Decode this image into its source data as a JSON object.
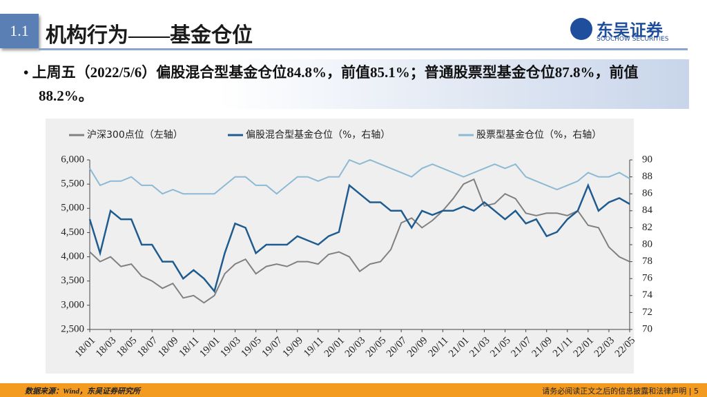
{
  "header": {
    "section": "1.1",
    "title": "机构行为——基金仓位",
    "logo": "东吴证券",
    "logo_en": "SOOCHOW SECURITIES"
  },
  "bullet": "• 上周五（2022/5/6）偏股混合型基金仓位84.8%，前值85.1%；普通股票型基金仓位87.8%，前值88.2%。",
  "footer": {
    "source": "数据来源：Wind，东吴证券研究所",
    "disclaimer": "请务必阅读正文之后的信息披露和法律声明 | 5"
  },
  "chart_data": {
    "type": "line",
    "categories": [
      "18/01",
      null,
      "18/03",
      null,
      "18/05",
      null,
      "18/07",
      null,
      "18/09",
      null,
      "18/11",
      null,
      "19/01",
      null,
      "19/03",
      null,
      "19/05",
      null,
      "19/07",
      null,
      "19/09",
      null,
      "19/11",
      null,
      "20/01",
      null,
      "20/03",
      null,
      "20/05",
      null,
      "20/07",
      null,
      "20/09",
      null,
      "20/11",
      null,
      "21/01",
      null,
      "21/03",
      null,
      "21/05",
      null,
      "21/07",
      null,
      "21/09",
      null,
      "21/11",
      null,
      "22/01",
      null,
      "22/03",
      null,
      "22/05"
    ],
    "series": [
      {
        "name": "沪深300点位（左轴）",
        "color": "#808080",
        "axis": "y",
        "values": [
          4100,
          3900,
          4000,
          3800,
          3850,
          3600,
          3500,
          3350,
          3450,
          3150,
          3200,
          3050,
          3200,
          3650,
          3850,
          3950,
          3650,
          3800,
          3850,
          3800,
          3900,
          3900,
          3850,
          4050,
          4100,
          4000,
          3700,
          3850,
          3900,
          4150,
          4700,
          4800,
          4600,
          4750,
          4950,
          5200,
          5500,
          5600,
          5050,
          5100,
          5300,
          5200,
          4900,
          4850,
          4900,
          4900,
          4850,
          4950,
          4650,
          4600,
          4200,
          4000,
          3900
        ]
      },
      {
        "name": "偏股混合型基金仓位（%，右轴）",
        "color": "#1f5b8e",
        "axis": "y2",
        "values": [
          83,
          79,
          84,
          83,
          83,
          80,
          80,
          78,
          78,
          76,
          77,
          76,
          74.5,
          79,
          82.5,
          82,
          79,
          80,
          80,
          80,
          81,
          80.5,
          80,
          81,
          81.5,
          87,
          86,
          85,
          85,
          84,
          84,
          82,
          84,
          83.5,
          84,
          84,
          84.5,
          84,
          85,
          84,
          83,
          84,
          82.5,
          83,
          81,
          81.5,
          83,
          84,
          87,
          84,
          85,
          85.5,
          84.8
        ]
      },
      {
        "name": "股票型基金仓位（%，右轴）",
        "color": "#8cb9d4",
        "axis": "y2",
        "values": [
          89,
          87,
          87.5,
          87.5,
          88,
          87,
          87,
          86,
          86.5,
          86,
          86,
          86,
          86,
          87,
          88,
          88,
          87,
          87,
          86,
          87,
          88,
          88,
          87.5,
          88,
          88,
          90,
          89.5,
          90,
          89.5,
          89,
          88.5,
          88,
          89,
          89.5,
          89,
          88.5,
          88,
          88.5,
          89,
          89.5,
          89,
          89.5,
          88,
          87.5,
          87,
          86.5,
          87,
          87.5,
          88.5,
          88,
          88,
          88.5,
          87.8
        ]
      }
    ],
    "ylim": [
      2500,
      6000
    ],
    "yticks": [
      {
        "value": 2500,
        "label": "2,500"
      },
      {
        "value": 3000,
        "label": "3,000"
      },
      {
        "value": 3500,
        "label": "3,500"
      },
      {
        "value": 4000,
        "label": "4,000"
      },
      {
        "value": 4500,
        "label": "4,500"
      },
      {
        "value": 5000,
        "label": "5,000"
      },
      {
        "value": 5500,
        "label": "5,500"
      },
      {
        "value": 6000,
        "label": "6,000"
      }
    ],
    "y2lim": [
      70,
      90
    ],
    "y2ticks": [
      70,
      72,
      74,
      76,
      78,
      80,
      82,
      84,
      86,
      88,
      90
    ],
    "legend": "top"
  }
}
